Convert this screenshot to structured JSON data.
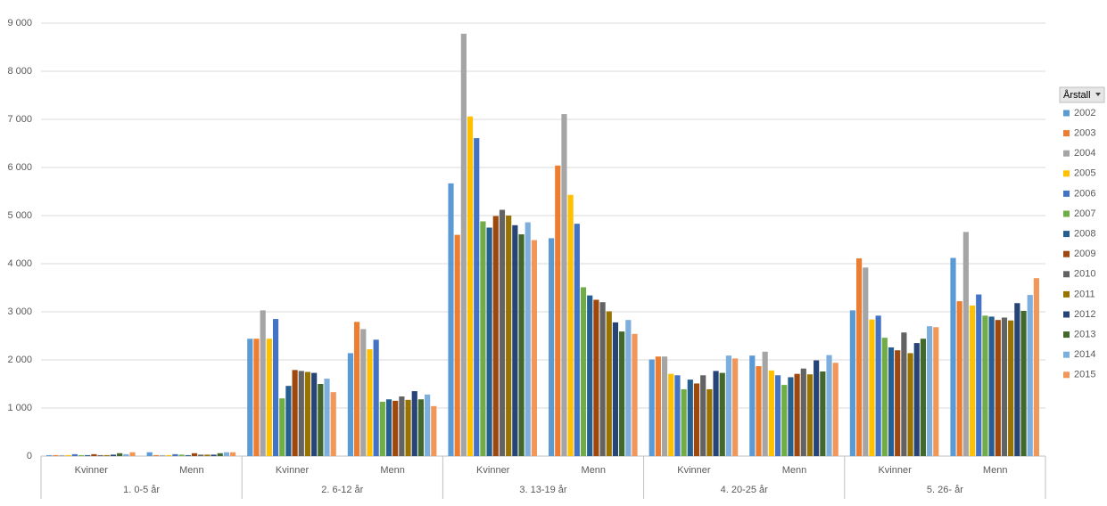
{
  "chart_data": {
    "type": "bar",
    "groups": [
      "1. 0-5 år",
      "2. 6-12 år",
      "3. 13-19 år",
      "4. 20-25 år",
      "5. 26- år"
    ],
    "categories": [
      "Kvinner",
      "Menn",
      "Kvinner",
      "Menn",
      "Kvinner",
      "Menn",
      "Kvinner",
      "Menn",
      "Kvinner",
      "Menn"
    ],
    "legend_title": "Årstall",
    "ylim": [
      0,
      9000
    ],
    "yticks": [
      0,
      {
        "value": 1000,
        "label": "1 000"
      },
      {
        "value": 2000,
        "label": "2 000"
      },
      {
        "value": 3000,
        "label": "3 000"
      },
      {
        "value": 4000,
        "label": "4 000"
      },
      {
        "value": 5000,
        "label": "5 000"
      },
      {
        "value": 6000,
        "label": "6 000"
      },
      {
        "value": 7000,
        "label": "7 000"
      },
      {
        "value": 8000,
        "label": "8 000"
      },
      {
        "value": 9000,
        "label": "9 000"
      }
    ],
    "grid": true,
    "legend": "right",
    "series": [
      {
        "name": "2002",
        "color": "#5b9bd5",
        "values": [
          20,
          80,
          2440,
          2140,
          5670,
          4530,
          2010,
          2090,
          3030,
          4120
        ]
      },
      {
        "name": "2003",
        "color": "#ed7d31",
        "values": [
          20,
          20,
          2440,
          2790,
          4600,
          6040,
          2070,
          1870,
          4110,
          3220
        ]
      },
      {
        "name": "2004",
        "color": "#a5a5a5",
        "values": [
          20,
          20,
          3030,
          2640,
          8780,
          7110,
          2070,
          2170,
          3920,
          4660
        ]
      },
      {
        "name": "2005",
        "color": "#ffc000",
        "values": [
          20,
          20,
          2440,
          2220,
          7060,
          5430,
          1710,
          1780,
          2840,
          3130
        ]
      },
      {
        "name": "2006",
        "color": "#4472c4",
        "values": [
          40,
          40,
          2850,
          2420,
          6610,
          4830,
          1680,
          1680,
          2920,
          3360
        ]
      },
      {
        "name": "2007",
        "color": "#70ad47",
        "values": [
          20,
          30,
          1200,
          1130,
          4880,
          3510,
          1390,
          1480,
          2460,
          2920
        ]
      },
      {
        "name": "2008",
        "color": "#255e91",
        "values": [
          20,
          20,
          1460,
          1180,
          4750,
          3340,
          1590,
          1640,
          2260,
          2900
        ]
      },
      {
        "name": "2009",
        "color": "#9e480e",
        "values": [
          40,
          60,
          1790,
          1150,
          4990,
          3250,
          1510,
          1710,
          2200,
          2830
        ]
      },
      {
        "name": "2010",
        "color": "#636363",
        "values": [
          20,
          30,
          1770,
          1240,
          5120,
          3200,
          1680,
          1820,
          2570,
          2880
        ]
      },
      {
        "name": "2011",
        "color": "#997300",
        "values": [
          20,
          30,
          1750,
          1170,
          5000,
          3010,
          1390,
          1700,
          2140,
          2820
        ]
      },
      {
        "name": "2012",
        "color": "#264478",
        "values": [
          30,
          30,
          1730,
          1350,
          4800,
          2780,
          1770,
          1990,
          2350,
          3180
        ]
      },
      {
        "name": "2013",
        "color": "#43682b",
        "values": [
          60,
          60,
          1500,
          1180,
          4610,
          2590,
          1730,
          1760,
          2440,
          3020
        ]
      },
      {
        "name": "2014",
        "color": "#7cafdd",
        "values": [
          40,
          80,
          1610,
          1280,
          4860,
          2830,
          2090,
          2100,
          2700,
          3350
        ]
      },
      {
        "name": "2015",
        "color": "#f1975a",
        "values": [
          80,
          80,
          1330,
          1040,
          4490,
          2540,
          2030,
          1940,
          2680,
          3700
        ]
      }
    ]
  }
}
